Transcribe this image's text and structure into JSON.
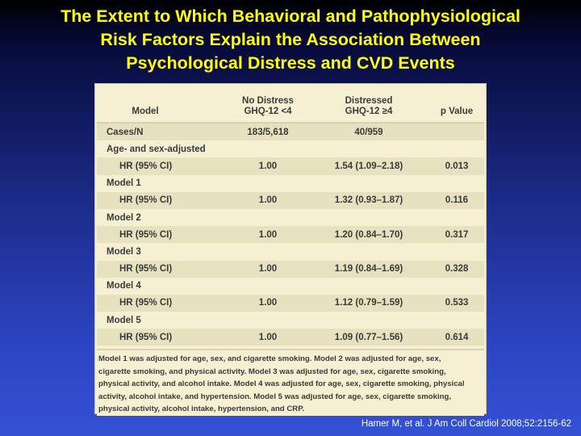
{
  "title": {
    "line1": "The Extent to Which Behavioral and Pathophysiological",
    "line2": "Risk Factors Explain the Association Between",
    "line3": "Psychological Distress and CVD Events"
  },
  "table": {
    "headers": {
      "model": "Model",
      "no_distress_line1": "No Distress",
      "no_distress_line2": "GHQ-12 <4",
      "distressed_line1": "Distressed",
      "distressed_line2": "GHQ-12 ≥4",
      "p_value": "p Value"
    },
    "rows": [
      {
        "model": "Cases/N",
        "no_distress": "183/5,618",
        "distressed": "40/959",
        "p": ""
      },
      {
        "model": "Age- and sex-adjusted",
        "no_distress": "",
        "distressed": "",
        "p": ""
      },
      {
        "model": "HR (95% CI)",
        "no_distress": "1.00",
        "distressed": "1.54 (1.09–2.18)",
        "p": "0.013"
      },
      {
        "model": "Model 1",
        "no_distress": "",
        "distressed": "",
        "p": ""
      },
      {
        "model": "HR (95% CI)",
        "no_distress": "1.00",
        "distressed": "1.32 (0.93–1.87)",
        "p": "0.116"
      },
      {
        "model": "Model 2",
        "no_distress": "",
        "distressed": "",
        "p": ""
      },
      {
        "model": "HR (95% CI)",
        "no_distress": "1.00",
        "distressed": "1.20 (0.84–1.70)",
        "p": "0.317"
      },
      {
        "model": "Model 3",
        "no_distress": "",
        "distressed": "",
        "p": ""
      },
      {
        "model": "HR (95% CI)",
        "no_distress": "1.00",
        "distressed": "1.19 (0.84–1.69)",
        "p": "0.328"
      },
      {
        "model": "Model 4",
        "no_distress": "",
        "distressed": "",
        "p": ""
      },
      {
        "model": "HR (95% CI)",
        "no_distress": "1.00",
        "distressed": "1.12 (0.79–1.59)",
        "p": "0.533"
      },
      {
        "model": "Model 5",
        "no_distress": "",
        "distressed": "",
        "p": ""
      },
      {
        "model": "HR (95% CI)",
        "no_distress": "1.00",
        "distressed": "1.09 (0.77–1.56)",
        "p": "0.614"
      }
    ],
    "footnote_lines": [
      "Model 1 was adjusted for age, sex, and cigarette smoking. Model 2 was adjusted for age, sex,",
      "cigarette smoking, and physical activity. Model 3 was adjusted for age, sex, cigarette smoking,",
      "physical activity, and alcohol intake. Model 4 was adjusted for age, sex, cigarette smoking, physical",
      "activity, alcohol intake, and hypertension. Model 5 was adjusted for age, sex, cigarette smoking,",
      "physical activity, alcohol intake, hypertension, and CRP."
    ]
  },
  "citation": "Hamer M, et al. J Am Coll Cardiol 2008;52:2156-62"
}
